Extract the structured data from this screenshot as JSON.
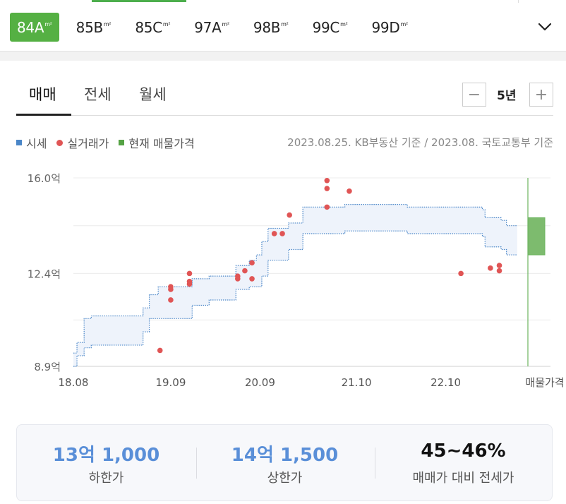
{
  "size_tabs": [
    {
      "label": "84A",
      "unit": "m²"
    },
    {
      "label": "85B",
      "unit": "m²"
    },
    {
      "label": "85C",
      "unit": "m²"
    },
    {
      "label": "97A",
      "unit": "m²"
    },
    {
      "label": "98B",
      "unit": "m²"
    },
    {
      "label": "99C",
      "unit": "m²"
    },
    {
      "label": "99D",
      "unit": "m²"
    }
  ],
  "deal_tabs": [
    "매매",
    "전세",
    "월세"
  ],
  "period": {
    "minus": "−",
    "label": "5년",
    "plus": "+"
  },
  "legend": [
    "시세",
    "실거래가",
    "현재 매물가격"
  ],
  "source": "2023.08.25. KB부동산 기준 / 2023.08. 국토교통부 기준",
  "colors": {
    "accent": "#55b043",
    "kb_line": "#4a86c8",
    "kb_fill": "#eef3fb",
    "transaction": "#e05555",
    "listing": "#6bb35e",
    "summary_blue": "#5a8fd8"
  },
  "chart_data": {
    "type": "line",
    "title": "",
    "x_ticks": [
      "18.08",
      "19.09",
      "20.09",
      "21.10",
      "22.10",
      "매물가격"
    ],
    "y_ticks": [
      "16.0억",
      "12.4억",
      "8.9억"
    ],
    "ylim": [
      8.9,
      16.0
    ],
    "xlim": [
      2018.58,
      2023.67
    ],
    "grid": "horizontal",
    "series": [
      {
        "name": "시세",
        "band": [
          {
            "x": 2018.58,
            "lower": 8.9,
            "upper": 9.4
          },
          {
            "x": 2018.62,
            "lower": 9.3,
            "upper": 9.8
          },
          {
            "x": 2018.7,
            "lower": 9.6,
            "upper": 10.7
          },
          {
            "x": 2018.78,
            "lower": 9.7,
            "upper": 10.8
          },
          {
            "x": 2019.33,
            "lower": 9.7,
            "upper": 10.8
          },
          {
            "x": 2019.36,
            "lower": 10.2,
            "upper": 11.1
          },
          {
            "x": 2019.43,
            "lower": 10.7,
            "upper": 11.6
          },
          {
            "x": 2019.53,
            "lower": 10.7,
            "upper": 11.9
          },
          {
            "x": 2019.85,
            "lower": 10.7,
            "upper": 11.9
          },
          {
            "x": 2019.91,
            "lower": 11.2,
            "upper": 12.2
          },
          {
            "x": 2020.1,
            "lower": 11.4,
            "upper": 12.3
          },
          {
            "x": 2020.4,
            "lower": 11.8,
            "upper": 12.7
          },
          {
            "x": 2020.55,
            "lower": 11.9,
            "upper": 12.9
          },
          {
            "x": 2020.63,
            "lower": 11.9,
            "upper": 13.1
          },
          {
            "x": 2020.69,
            "lower": 12.3,
            "upper": 13.6
          },
          {
            "x": 2020.76,
            "lower": 12.9,
            "upper": 14.1
          },
          {
            "x": 2020.97,
            "lower": 12.9,
            "upper": 14.1
          },
          {
            "x": 2020.99,
            "lower": 13.3,
            "upper": 14.3
          },
          {
            "x": 2021.11,
            "lower": 13.3,
            "upper": 14.3
          },
          {
            "x": 2021.15,
            "lower": 13.9,
            "upper": 14.9
          },
          {
            "x": 2021.56,
            "lower": 13.9,
            "upper": 14.9
          },
          {
            "x": 2021.62,
            "lower": 14.0,
            "upper": 15.0
          },
          {
            "x": 2022.24,
            "lower": 14.0,
            "upper": 15.0
          },
          {
            "x": 2022.32,
            "lower": 13.9,
            "upper": 14.9
          },
          {
            "x": 2023.13,
            "lower": 13.9,
            "upper": 14.9
          },
          {
            "x": 2023.16,
            "lower": 13.8,
            "upper": 14.8
          },
          {
            "x": 2023.19,
            "lower": 13.4,
            "upper": 14.5
          },
          {
            "x": 2023.37,
            "lower": 13.3,
            "upper": 14.4
          },
          {
            "x": 2023.43,
            "lower": 13.1,
            "upper": 14.2
          },
          {
            "x": 2023.55,
            "lower": 13.1,
            "upper": 14.2
          }
        ]
      },
      {
        "name": "실거래가",
        "points": [
          {
            "x": 2019.55,
            "y": 9.5
          },
          {
            "x": 2019.67,
            "y": 11.4
          },
          {
            "x": 2019.67,
            "y": 11.8
          },
          {
            "x": 2019.67,
            "y": 11.9
          },
          {
            "x": 2019.88,
            "y": 12.0
          },
          {
            "x": 2019.88,
            "y": 12.1
          },
          {
            "x": 2019.88,
            "y": 12.4
          },
          {
            "x": 2020.42,
            "y": 12.2
          },
          {
            "x": 2020.42,
            "y": 12.3
          },
          {
            "x": 2020.5,
            "y": 12.5
          },
          {
            "x": 2020.58,
            "y": 12.2
          },
          {
            "x": 2020.58,
            "y": 12.8
          },
          {
            "x": 2020.83,
            "y": 13.9
          },
          {
            "x": 2020.92,
            "y": 13.9
          },
          {
            "x": 2021.0,
            "y": 14.6
          },
          {
            "x": 2021.42,
            "y": 14.9
          },
          {
            "x": 2021.42,
            "y": 15.6
          },
          {
            "x": 2021.42,
            "y": 15.9
          },
          {
            "x": 2021.67,
            "y": 15.5
          },
          {
            "x": 2022.92,
            "y": 12.4
          },
          {
            "x": 2023.25,
            "y": 12.6
          },
          {
            "x": 2023.35,
            "y": 12.5
          },
          {
            "x": 2023.35,
            "y": 12.7
          }
        ]
      },
      {
        "name": "현재 매물가격",
        "range": [
          13.1,
          14.5
        ]
      }
    ]
  },
  "summary": [
    {
      "value": "13억 1,000",
      "label": "하한가"
    },
    {
      "value": "14억 1,500",
      "label": "상한가"
    },
    {
      "value": "45~46%",
      "label": "매매가 대비 전세가"
    }
  ]
}
